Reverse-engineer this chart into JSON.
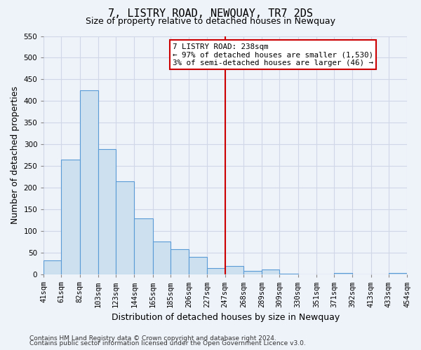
{
  "title": "7, LISTRY ROAD, NEWQUAY, TR7 2DS",
  "subtitle": "Size of property relative to detached houses in Newquay",
  "xlabel": "Distribution of detached houses by size in Newquay",
  "ylabel": "Number of detached properties",
  "bar_labels": [
    "41sqm",
    "61sqm",
    "82sqm",
    "103sqm",
    "123sqm",
    "144sqm",
    "165sqm",
    "185sqm",
    "206sqm",
    "227sqm",
    "247sqm",
    "268sqm",
    "289sqm",
    "309sqm",
    "330sqm",
    "351sqm",
    "371sqm",
    "392sqm",
    "413sqm",
    "433sqm",
    "454sqm"
  ],
  "bar_values": [
    32,
    265,
    425,
    290,
    215,
    130,
    76,
    58,
    40,
    15,
    20,
    9,
    11,
    2,
    0,
    0,
    4,
    0,
    0,
    3,
    2
  ],
  "bin_edges": [
    41,
    61,
    82,
    103,
    123,
    144,
    165,
    185,
    206,
    227,
    247,
    268,
    289,
    309,
    330,
    351,
    371,
    392,
    413,
    433,
    454
  ],
  "bar_color": "#cce0f0",
  "bar_edge_color": "#5b9bd5",
  "vline_x": 247,
  "vline_color": "#cc0000",
  "annotation_title": "7 LISTRY ROAD: 238sqm",
  "annotation_line1": "← 97% of detached houses are smaller (1,530)",
  "annotation_line2": "3% of semi-detached houses are larger (46) →",
  "annotation_box_color": "#ffffff",
  "annotation_box_edge_color": "#cc0000",
  "ylim": [
    0,
    550
  ],
  "yticks": [
    0,
    50,
    100,
    150,
    200,
    250,
    300,
    350,
    400,
    450,
    500,
    550
  ],
  "footer1": "Contains HM Land Registry data © Crown copyright and database right 2024.",
  "footer2": "Contains public sector information licensed under the Open Government Licence v3.0.",
  "background_color": "#eef2f9",
  "grid_color": "#d0d8e8",
  "title_fontsize": 11,
  "subtitle_fontsize": 9,
  "axis_label_fontsize": 9,
  "tick_fontsize": 7.5,
  "footer_fontsize": 6.5
}
